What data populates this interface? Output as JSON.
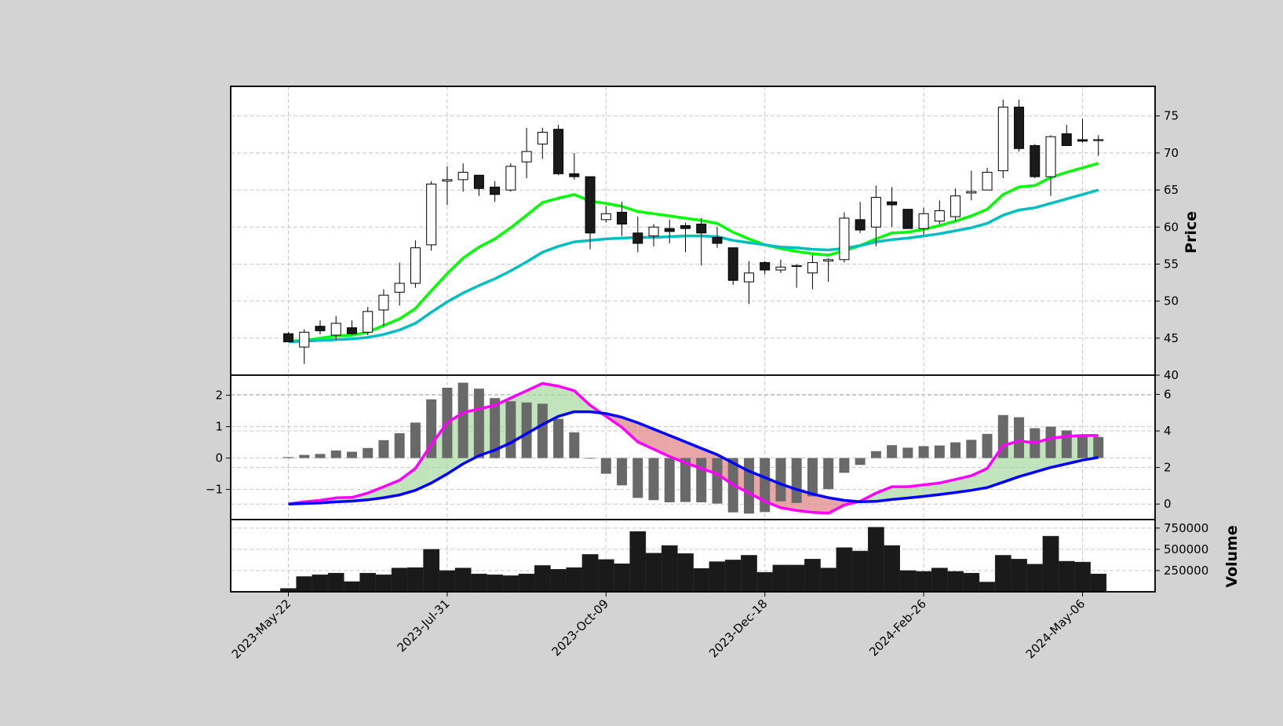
{
  "chart_data": [
    {
      "type": "candlestick",
      "panel": "price",
      "ylabel": "Price",
      "ylim": [
        40,
        79
      ],
      "yticks": [
        40,
        45,
        50,
        55,
        60,
        65,
        70,
        75
      ],
      "xticks": [
        "2023-May-22",
        "2023-Jul-31",
        "2023-Oct-09",
        "2023-Dec-18",
        "2024-Feb-26",
        "2024-May-06"
      ],
      "xtick_index": [
        0,
        10,
        20,
        30,
        40,
        50
      ],
      "dates": [
        "2023-05-22",
        "2023-05-29",
        "2023-06-05",
        "2023-06-12",
        "2023-06-19",
        "2023-06-26",
        "2023-07-03",
        "2023-07-10",
        "2023-07-17",
        "2023-07-24",
        "2023-07-31",
        "2023-08-07",
        "2023-08-14",
        "2023-08-21",
        "2023-08-28",
        "2023-09-04",
        "2023-09-11",
        "2023-09-18",
        "2023-09-25",
        "2023-10-02",
        "2023-10-09",
        "2023-10-16",
        "2023-10-23",
        "2023-10-30",
        "2023-11-06",
        "2023-11-13",
        "2023-11-20",
        "2023-11-27",
        "2023-12-04",
        "2023-12-11",
        "2023-12-18",
        "2023-12-25",
        "2024-01-01",
        "2024-01-08",
        "2024-01-15",
        "2024-01-22",
        "2024-01-29",
        "2024-02-05",
        "2024-02-12",
        "2024-02-19",
        "2024-02-26",
        "2024-03-04",
        "2024-03-11",
        "2024-03-18",
        "2024-03-25",
        "2024-04-01",
        "2024-04-08",
        "2024-04-15",
        "2024-04-22",
        "2024-04-29",
        "2024-05-06",
        "2024-05-13"
      ],
      "ohlc": [
        [
          45.6,
          45.8,
          44.5,
          44.5
        ],
        [
          43.8,
          46.2,
          41.5,
          45.8
        ],
        [
          46.6,
          47.4,
          45.5,
          46.0
        ],
        [
          45.4,
          48.0,
          44.8,
          47.0
        ],
        [
          46.4,
          47.4,
          45.4,
          45.6
        ],
        [
          45.8,
          49.2,
          45.4,
          48.6
        ],
        [
          48.8,
          51.6,
          46.6,
          50.8
        ],
        [
          51.2,
          55.2,
          49.4,
          52.4
        ],
        [
          52.4,
          58.2,
          51.8,
          57.2
        ],
        [
          57.6,
          66.2,
          56.8,
          65.8
        ],
        [
          66.2,
          68.2,
          63.0,
          66.4
        ],
        [
          66.4,
          68.6,
          64.8,
          67.4
        ],
        [
          67.0,
          67.0,
          64.2,
          65.2
        ],
        [
          65.4,
          66.2,
          63.4,
          64.4
        ],
        [
          65.0,
          68.6,
          64.8,
          68.2
        ],
        [
          68.8,
          73.4,
          66.6,
          70.2
        ],
        [
          71.2,
          73.4,
          69.2,
          72.8
        ],
        [
          73.2,
          73.8,
          67.0,
          67.2
        ],
        [
          67.2,
          70.0,
          66.4,
          66.8
        ],
        [
          66.8,
          66.8,
          57.0,
          59.2
        ],
        [
          61.0,
          62.8,
          60.6,
          61.8
        ],
        [
          62.0,
          63.4,
          58.8,
          60.4
        ],
        [
          59.2,
          61.4,
          56.6,
          57.8
        ],
        [
          58.8,
          60.4,
          57.4,
          60.0
        ],
        [
          59.8,
          61.0,
          57.8,
          59.4
        ],
        [
          60.2,
          60.6,
          56.6,
          59.8
        ],
        [
          60.4,
          61.2,
          54.8,
          59.2
        ],
        [
          58.6,
          60.0,
          57.2,
          57.8
        ],
        [
          57.2,
          57.2,
          52.2,
          52.8
        ],
        [
          52.6,
          55.4,
          49.6,
          53.8
        ],
        [
          55.2,
          55.4,
          53.6,
          54.2
        ],
        [
          54.2,
          55.6,
          53.8,
          54.6
        ],
        [
          54.8,
          55.0,
          51.8,
          54.8
        ],
        [
          53.8,
          56.2,
          51.6,
          55.2
        ],
        [
          55.4,
          55.8,
          52.6,
          55.6
        ],
        [
          55.6,
          62.0,
          55.2,
          61.2
        ],
        [
          61.0,
          63.4,
          59.2,
          59.6
        ],
        [
          60.0,
          65.6,
          57.4,
          64.0
        ],
        [
          63.4,
          65.4,
          60.0,
          63.0
        ],
        [
          62.4,
          62.4,
          59.8,
          59.8
        ],
        [
          59.8,
          62.6,
          59.0,
          61.8
        ],
        [
          60.8,
          63.6,
          60.4,
          62.2
        ],
        [
          61.4,
          65.2,
          60.8,
          64.2
        ],
        [
          64.6,
          67.6,
          63.6,
          64.8
        ],
        [
          65.0,
          68.0,
          65.0,
          67.4
        ],
        [
          67.6,
          77.2,
          66.6,
          76.2
        ],
        [
          76.2,
          77.2,
          70.2,
          70.6
        ],
        [
          71.0,
          71.2,
          66.6,
          66.8
        ],
        [
          66.8,
          72.4,
          64.2,
          72.2
        ],
        [
          72.6,
          73.8,
          71.0,
          71.0
        ],
        [
          71.8,
          74.6,
          71.4,
          71.6
        ],
        [
          71.8,
          72.4,
          69.6,
          71.8
        ]
      ],
      "series": [
        {
          "name": "",
          "color": "#00ff00",
          "values": [
            44.6,
            44.7,
            45.0,
            45.3,
            45.4,
            45.8,
            46.7,
            47.6,
            49.0,
            51.4,
            53.7,
            55.8,
            57.3,
            58.4,
            59.9,
            61.6,
            63.3,
            63.9,
            64.4,
            63.5,
            63.2,
            62.8,
            62.1,
            61.8,
            61.5,
            61.2,
            60.9,
            60.5,
            59.3,
            58.4,
            57.6,
            57.1,
            56.7,
            56.4,
            56.2,
            56.8,
            57.5,
            58.4,
            59.2,
            59.3,
            59.7,
            60.2,
            60.8,
            61.5,
            62.4,
            64.4,
            65.4,
            65.6,
            66.7,
            67.4,
            68.0,
            68.6
          ]
        },
        {
          "name": "",
          "color": "#00bfbf",
          "values": [
            44.5,
            44.6,
            44.7,
            44.8,
            44.9,
            45.1,
            45.5,
            46.1,
            47.0,
            48.5,
            49.9,
            51.1,
            52.1,
            53.0,
            54.1,
            55.3,
            56.6,
            57.4,
            58.0,
            58.2,
            58.4,
            58.5,
            58.6,
            58.6,
            58.7,
            58.8,
            58.8,
            58.7,
            58.2,
            57.9,
            57.6,
            57.3,
            57.2,
            57.0,
            56.9,
            57.1,
            57.5,
            58.0,
            58.3,
            58.5,
            58.8,
            59.1,
            59.5,
            59.9,
            60.5,
            61.6,
            62.3,
            62.6,
            63.2,
            63.8,
            64.4,
            65.0
          ]
        }
      ]
    },
    {
      "type": "bar+line",
      "panel": "macd",
      "left_yticks": [
        -1,
        0,
        1,
        2
      ],
      "left_ylim": [
        -1.96,
        2.64
      ],
      "right_yticks": [
        0,
        2,
        4,
        6
      ],
      "right_ylim": [
        -0.85,
        7.05
      ],
      "histogram_color": "#696969",
      "histogram": [
        0.03,
        0.1,
        0.13,
        0.24,
        0.2,
        0.32,
        0.57,
        0.79,
        1.13,
        1.87,
        2.24,
        2.4,
        2.21,
        1.91,
        1.81,
        1.77,
        1.73,
        1.25,
        0.82,
        -0.02,
        -0.5,
        -0.87,
        -1.27,
        -1.34,
        -1.41,
        -1.4,
        -1.41,
        -1.45,
        -1.73,
        -1.77,
        -1.72,
        -1.38,
        -1.43,
        -1.22,
        -0.99,
        -0.47,
        -0.22,
        0.22,
        0.41,
        0.33,
        0.38,
        0.4,
        0.5,
        0.58,
        0.77,
        1.37,
        1.3,
        0.95,
        1.0,
        0.88,
        0.75,
        0.67
      ],
      "series": [
        {
          "name": "",
          "color": "#ff00ff",
          "values": [
            0.0,
            0.12,
            0.2,
            0.34,
            0.36,
            0.6,
            0.95,
            1.3,
            1.95,
            3.25,
            4.45,
            5.0,
            5.2,
            5.4,
            5.8,
            6.2,
            6.6,
            6.45,
            6.2,
            5.4,
            4.8,
            4.2,
            3.4,
            3.0,
            2.6,
            2.25,
            1.95,
            1.65,
            1.05,
            0.6,
            0.15,
            -0.2,
            -0.35,
            -0.45,
            -0.5,
            -0.05,
            0.15,
            0.6,
            0.95,
            0.95,
            1.05,
            1.15,
            1.35,
            1.55,
            1.95,
            3.2,
            3.45,
            3.35,
            3.6,
            3.7,
            3.75,
            3.75
          ]
        },
        {
          "name": "",
          "color": "#0000ff",
          "values": [
            0.0,
            0.03,
            0.06,
            0.12,
            0.16,
            0.23,
            0.35,
            0.5,
            0.75,
            1.15,
            1.65,
            2.2,
            2.65,
            2.95,
            3.35,
            3.85,
            4.35,
            4.8,
            5.05,
            5.05,
            4.95,
            4.75,
            4.45,
            4.1,
            3.75,
            3.4,
            3.05,
            2.7,
            2.25,
            1.8,
            1.45,
            1.1,
            0.8,
            0.55,
            0.35,
            0.2,
            0.13,
            0.15,
            0.25,
            0.33,
            0.42,
            0.52,
            0.63,
            0.75,
            0.9,
            1.2,
            1.5,
            1.75,
            2.0,
            2.2,
            2.4,
            2.55
          ]
        }
      ]
    },
    {
      "type": "bar",
      "panel": "volume",
      "ylabel": "Volume",
      "ylim": [
        0,
        850000
      ],
      "yticks": [
        250000,
        500000,
        750000
      ],
      "color": "#1a1a1a",
      "values": [
        40000,
        180000,
        200000,
        220000,
        120000,
        220000,
        200000,
        280000,
        285000,
        500000,
        250000,
        280000,
        210000,
        200000,
        190000,
        210000,
        310000,
        265000,
        285000,
        440000,
        380000,
        330000,
        710000,
        455000,
        545000,
        450000,
        275000,
        355000,
        375000,
        430000,
        230000,
        315000,
        315000,
        385000,
        280000,
        520000,
        480000,
        760000,
        545000,
        250000,
        240000,
        280000,
        240000,
        220000,
        115000,
        430000,
        385000,
        325000,
        655000,
        360000,
        350000,
        210000
      ]
    }
  ]
}
